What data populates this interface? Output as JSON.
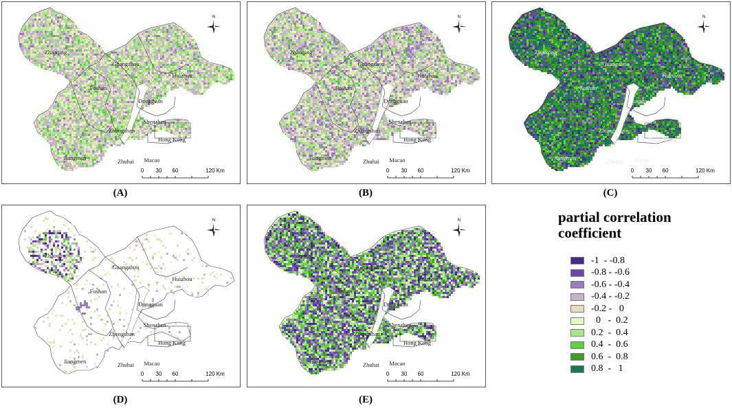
{
  "panels": [
    {
      "id": "A",
      "caption": "(A)",
      "mode": "A"
    },
    {
      "id": "B",
      "caption": "(B)",
      "mode": "B"
    },
    {
      "id": "C",
      "caption": "(C)",
      "mode": "C"
    },
    {
      "id": "D",
      "caption": "(D)",
      "mode": "D"
    },
    {
      "id": "E",
      "caption": "(E)",
      "mode": "E"
    }
  ],
  "city_labels": [
    "Zhaoqing",
    "Guangzhou",
    "Huizhou",
    "Foshan",
    "Dongguan",
    "Shenzhen",
    "Zhongshan",
    "Hong Kong",
    "Jiangmen",
    "Zhuhai",
    "Macao"
  ],
  "north_label": "N",
  "scale_bar": {
    "ticks": [
      "0",
      "30",
      "60",
      "120 Km"
    ]
  },
  "legend": {
    "title": "partial correlation coefficient",
    "classes": [
      {
        "label": "-1  - -0.8",
        "color": "#4b2a8c"
      },
      {
        "label": "-0.8 - -0.6",
        "color": "#6a47a8"
      },
      {
        "label": "-0.6 - -0.4",
        "color": "#9b7cbf"
      },
      {
        "label": "-0.4 - -0.2",
        "color": "#c6b1cc"
      },
      {
        "label": "-0.2 -   0",
        "color": "#e8dcc0"
      },
      {
        "label": "  0   -  0.2",
        "color": "#e4f7c4"
      },
      {
        "label": "0.2  -  0.4",
        "color": "#a9e889"
      },
      {
        "label": "0.4  -  0.6",
        "color": "#5fd33a"
      },
      {
        "label": "0.6  -  0.8",
        "color": "#3a9e1f"
      },
      {
        "label": "0.8  -   1",
        "color": "#157a56"
      }
    ]
  }
}
